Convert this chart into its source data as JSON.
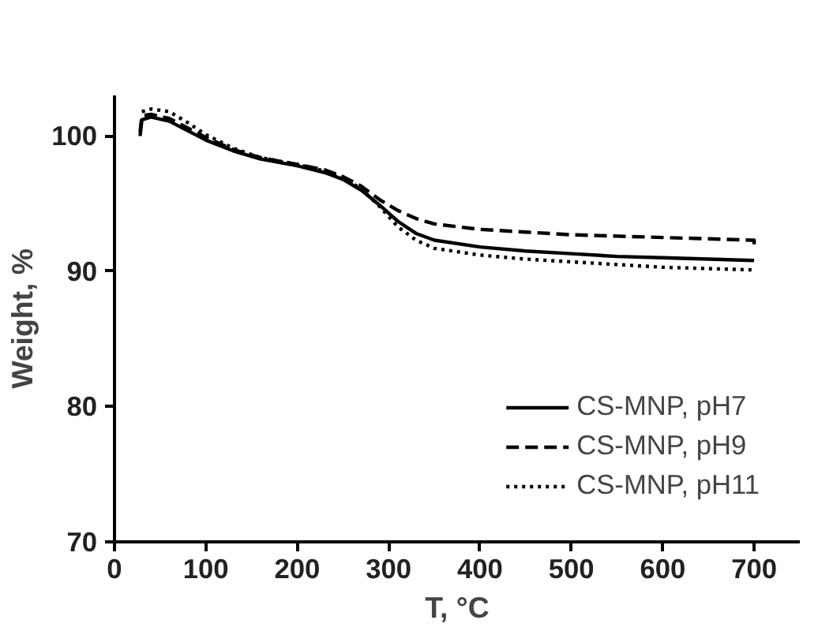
{
  "chart_data": {
    "type": "line",
    "xlabel": "T, °C",
    "ylabel": "Weight, %",
    "xlim": [
      0,
      750
    ],
    "ylim": [
      70,
      103
    ],
    "xticks": [
      0,
      100,
      200,
      300,
      400,
      500,
      600,
      700
    ],
    "yticks": [
      70,
      80,
      90,
      100
    ],
    "grid": false,
    "legend": "bottom right",
    "marker": "none",
    "series": [
      {
        "name": "CS-MNP, pH7",
        "color": "#000000",
        "line_style": "solid",
        "x": [
          28,
          30,
          40,
          60,
          80,
          100,
          130,
          160,
          200,
          230,
          250,
          270,
          290,
          310,
          330,
          350,
          400,
          450,
          500,
          550,
          600,
          650,
          700
        ],
        "values": [
          100,
          101.2,
          101.4,
          101.1,
          100.4,
          99.7,
          98.9,
          98.3,
          97.8,
          97.3,
          96.8,
          96.0,
          94.9,
          93.7,
          92.8,
          92.3,
          91.8,
          91.5,
          91.3,
          91.1,
          91.0,
          90.9,
          90.8
        ]
      },
      {
        "name": "CS-MNP, pH9",
        "color": "#000000",
        "line_style": "dashed",
        "x": [
          28,
          30,
          40,
          60,
          80,
          100,
          130,
          160,
          200,
          230,
          250,
          270,
          290,
          310,
          330,
          350,
          400,
          450,
          500,
          550,
          600,
          650,
          697,
          700,
          700
        ],
        "values": [
          100.3,
          101.5,
          101.6,
          101.3,
          100.6,
          99.9,
          99.0,
          98.4,
          97.9,
          97.5,
          97.0,
          96.3,
          95.3,
          94.5,
          93.9,
          93.5,
          93.1,
          92.9,
          92.7,
          92.6,
          92.5,
          92.4,
          92.3,
          92.3,
          91.7
        ]
      },
      {
        "name": "CS-MNP, pH11",
        "color": "#000000",
        "line_style": "dotted",
        "x": [
          30,
          40,
          60,
          80,
          100,
          130,
          160,
          200,
          230,
          250,
          270,
          290,
          310,
          330,
          350,
          400,
          450,
          500,
          550,
          600,
          650,
          700
        ],
        "values": [
          101.8,
          102.0,
          101.8,
          101.0,
          100.1,
          99.1,
          98.4,
          97.9,
          97.4,
          96.9,
          96.1,
          94.8,
          93.3,
          92.3,
          91.7,
          91.2,
          90.9,
          90.7,
          90.5,
          90.3,
          90.2,
          90.1
        ]
      }
    ]
  }
}
